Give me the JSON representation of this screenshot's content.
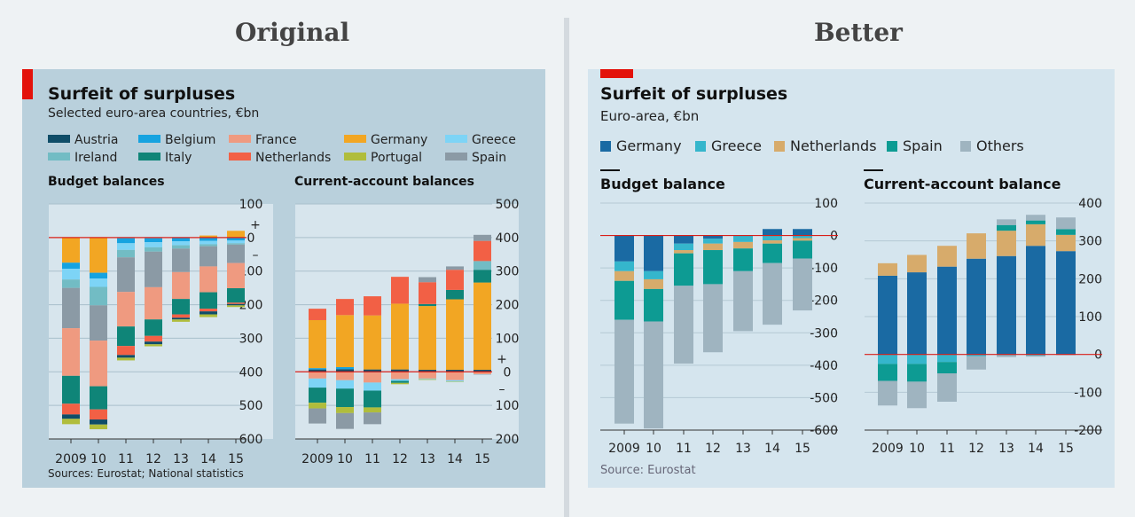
{
  "headings": {
    "left": "Original",
    "right": "Better"
  },
  "original": {
    "title": "Surfeit of surpluses",
    "subtitle": "Selected euro-area countries, €bn",
    "legend": [
      {
        "name": "Austria",
        "color": "#0f4d68"
      },
      {
        "name": "Belgium",
        "color": "#16a3e0"
      },
      {
        "name": "France",
        "color": "#ef9a80"
      },
      {
        "name": "Germany",
        "color": "#f2a623"
      },
      {
        "name": "Greece",
        "color": "#7dd4f6"
      },
      {
        "name": "Ireland",
        "color": "#72bcc4"
      },
      {
        "name": "Italy",
        "color": "#0f8578"
      },
      {
        "name": "Netherlands",
        "color": "#f26045"
      },
      {
        "name": "Portugal",
        "color": "#b0bd3c"
      },
      {
        "name": "Spain",
        "color": "#8b9aa5"
      }
    ],
    "source": "Sources: Eurostat; National statistics"
  },
  "better": {
    "title": "Surfeit of surpluses",
    "subtitle": "Euro-area, €bn",
    "legend": [
      {
        "name": "Germany",
        "color": "#1a6aa3"
      },
      {
        "name": "Greece",
        "color": "#35b6cc"
      },
      {
        "name": "Netherlands",
        "color": "#d7ab6b"
      },
      {
        "name": "Spain",
        "color": "#0d9b93"
      },
      {
        "name": "Others",
        "color": "#9fb4c0"
      }
    ],
    "source": "Source: Eurostat"
  },
  "chart_data": [
    {
      "id": "orig-budget",
      "type": "bar",
      "stacked": true,
      "title": "Budget balances",
      "categories": [
        "2009",
        "10",
        "11",
        "12",
        "13",
        "14",
        "15"
      ],
      "ylim": [
        -600,
        100
      ],
      "y_inverted_labels": true,
      "tick_values": [
        100,
        0,
        -100,
        -200,
        -300,
        -400,
        -500,
        -600
      ],
      "tick_labels": [
        "100",
        "0",
        "100",
        "200",
        "300",
        "400",
        "500",
        "600"
      ],
      "sign_plus": "+",
      "sign_minus": "–",
      "series": [
        {
          "name": "Germany",
          "values": [
            -75,
            -105,
            -2,
            -2,
            0,
            6,
            20
          ]
        },
        {
          "name": "Belgium",
          "values": [
            -18,
            -17,
            -15,
            -12,
            -11,
            -10,
            -9
          ]
        },
        {
          "name": "Greece",
          "values": [
            -32,
            -25,
            -20,
            -15,
            -12,
            -10,
            -8
          ]
        },
        {
          "name": "Ireland",
          "values": [
            -25,
            -55,
            -22,
            -13,
            -10,
            -6,
            -4
          ]
        },
        {
          "name": "Spain",
          "values": [
            -120,
            -105,
            -103,
            -106,
            -70,
            -60,
            -55
          ]
        },
        {
          "name": "France",
          "values": [
            -142,
            -136,
            -103,
            -96,
            -80,
            -77,
            -75
          ]
        },
        {
          "name": "Italy",
          "values": [
            -83,
            -69,
            -58,
            -49,
            -46,
            -49,
            -43
          ]
        },
        {
          "name": "Netherlands",
          "values": [
            -32,
            -30,
            -27,
            -17,
            -10,
            -8,
            -4
          ]
        },
        {
          "name": "Austria",
          "values": [
            -13,
            -15,
            -8,
            -8,
            -5,
            -9,
            -4
          ]
        },
        {
          "name": "Portugal",
          "values": [
            -16,
            -14,
            -8,
            -6,
            -7,
            -8,
            -5
          ]
        }
      ]
    },
    {
      "id": "orig-ca",
      "type": "bar",
      "stacked": true,
      "title": "Current-account balances",
      "categories": [
        "2009",
        "10",
        "11",
        "12",
        "13",
        "14",
        "15"
      ],
      "ylim": [
        -200,
        500
      ],
      "tick_values": [
        500,
        400,
        300,
        200,
        100,
        0,
        -100,
        -200
      ],
      "tick_labels": [
        "500",
        "400",
        "300",
        "200",
        "100",
        "0",
        "100",
        "200"
      ],
      "sign_plus": "+",
      "sign_minus": "–",
      "series": [
        {
          "name": "Austria",
          "values": [
            7,
            8,
            7,
            7,
            6,
            6,
            6
          ]
        },
        {
          "name": "Belgium",
          "values": [
            4,
            6,
            -2,
            0,
            0,
            0,
            0
          ]
        },
        {
          "name": "Germany",
          "values": [
            143,
            155,
            161,
            196,
            190,
            210,
            260
          ]
        },
        {
          "name": "Italy",
          "values": [
            0,
            0,
            0,
            0,
            6,
            28,
            38
          ]
        },
        {
          "name": "Ireland",
          "values": [
            0,
            0,
            0,
            0,
            0,
            0,
            26
          ]
        },
        {
          "name": "Netherlands",
          "values": [
            34,
            48,
            57,
            80,
            65,
            60,
            60
          ]
        },
        {
          "name": "Spain",
          "values": [
            0,
            0,
            0,
            0,
            15,
            10,
            18
          ]
        },
        {
          "name": "France",
          "values": [
            -20,
            -25,
            -30,
            -22,
            -20,
            -25,
            -8
          ]
        },
        {
          "name": "Greece",
          "values": [
            -27,
            -25,
            -24,
            -5,
            -2,
            -4,
            -1
          ]
        },
        {
          "name": "Italy",
          "values": [
            -45,
            -55,
            -50,
            -6,
            0,
            0,
            0
          ]
        },
        {
          "name": "Portugal",
          "values": [
            -17,
            -18,
            -15,
            -4,
            -2,
            -1,
            0
          ]
        },
        {
          "name": "Spain",
          "values": [
            -45,
            -47,
            -35,
            0,
            0,
            0,
            0
          ]
        }
      ]
    },
    {
      "id": "better-budget",
      "type": "bar",
      "stacked": true,
      "title": "Budget balance",
      "categories": [
        "2009",
        "10",
        "11",
        "12",
        "13",
        "14",
        "15"
      ],
      "ylim": [
        -620,
        100
      ],
      "tick_values": [
        100,
        0,
        -100,
        -200,
        -300,
        -400,
        -500,
        -600
      ],
      "tick_labels": [
        "100",
        "0",
        "-100",
        "-200",
        "-300",
        "-400",
        "-500",
        "-600"
      ],
      "series": [
        {
          "name": "Germany",
          "values": [
            -80,
            -110,
            -25,
            -10,
            0,
            20,
            20
          ]
        },
        {
          "name": "Greece",
          "values": [
            -30,
            -25,
            -20,
            -15,
            -20,
            -15,
            -8
          ]
        },
        {
          "name": "Netherlands",
          "values": [
            -30,
            -30,
            -10,
            -20,
            -20,
            -10,
            -8
          ]
        },
        {
          "name": "Spain",
          "values": [
            -120,
            -100,
            -100,
            -105,
            -70,
            -60,
            -55
          ]
        },
        {
          "name": "Others",
          "values": [
            -320,
            -330,
            -240,
            -210,
            -185,
            -190,
            -160
          ]
        }
      ]
    },
    {
      "id": "better-ca",
      "type": "bar",
      "stacked": true,
      "title": "Current-account balance",
      "categories": [
        "2009",
        "10",
        "11",
        "12",
        "13",
        "14",
        "15"
      ],
      "ylim": [
        -200,
        420
      ],
      "tick_values": [
        400,
        300,
        200,
        100,
        0,
        -100,
        -200
      ],
      "tick_labels": [
        "400",
        "300",
        "200",
        "100",
        "0",
        "-100",
        "-200"
      ],
      "series": [
        {
          "name": "Germany",
          "values": [
            208,
            217,
            232,
            253,
            260,
            287,
            273
          ]
        },
        {
          "name": "Netherlands",
          "values": [
            33,
            46,
            55,
            67,
            67,
            57,
            43
          ]
        },
        {
          "name": "Spain",
          "values": [
            0,
            0,
            0,
            0,
            15,
            10,
            15
          ]
        },
        {
          "name": "Others",
          "values": [
            0,
            0,
            0,
            0,
            15,
            15,
            31
          ]
        },
        {
          "name": "Greece",
          "values": [
            -25,
            -25,
            -20,
            -5,
            -2,
            -3,
            -1
          ]
        },
        {
          "name": "Spain",
          "values": [
            -45,
            -47,
            -30,
            0,
            0,
            0,
            0
          ]
        },
        {
          "name": "Others",
          "values": [
            -65,
            -70,
            -75,
            -35,
            -5,
            -3,
            -1
          ]
        }
      ]
    }
  ]
}
